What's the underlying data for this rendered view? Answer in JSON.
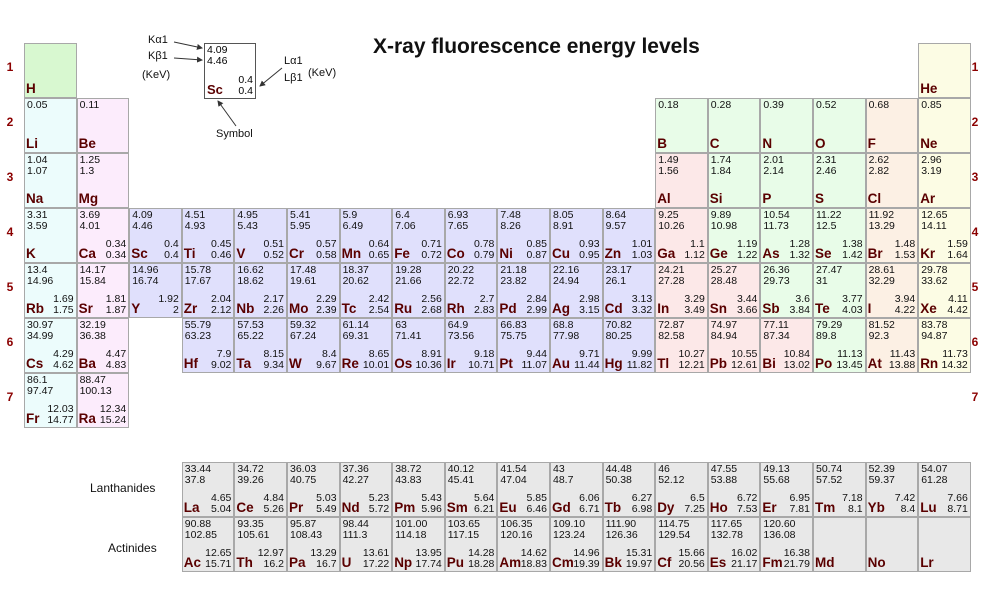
{
  "title": "X-ray fluorescence energy levels",
  "legend": {
    "ka1_label": "Kα1",
    "kb1_label": "Kβ1",
    "k_unit": "(KeV)",
    "la1_label": "Lα1",
    "lb1_label": "Lβ1",
    "l_unit": "(KeV)",
    "symbol_label": "Symbol",
    "example": {
      "k1": "4.09",
      "k2": "4.46",
      "sym": "Sc",
      "l1": "0.4",
      "l2": "0.4"
    }
  },
  "periods": [
    "1",
    "2",
    "3",
    "4",
    "5",
    "6",
    "7"
  ],
  "series_labels": {
    "lanthanides": "Lanthanides",
    "actinides": "Actinides"
  },
  "colors": {
    "s_block": "#ecfcfc",
    "s2_block": "#fcecfc",
    "d_block": "#e0e0fc",
    "post_transition": "#fce8e8",
    "nonmetal": "#e8fce8",
    "halogen": "#fcf0e4",
    "noble": "#fcfce4",
    "f_block": "#e8e8e8",
    "h": "#d8f8d0"
  },
  "elements": [
    {
      "s": "H",
      "r": 1,
      "c": 1,
      "k1": "",
      "k2": "",
      "l1": "",
      "l2": "",
      "cat": "h"
    },
    {
      "s": "He",
      "r": 1,
      "c": 18,
      "k1": "",
      "k2": "",
      "l1": "",
      "l2": "",
      "cat": "noble"
    },
    {
      "s": "Li",
      "r": 2,
      "c": 1,
      "k1": "0.05",
      "k2": "",
      "l1": "",
      "l2": "",
      "cat": "s_block"
    },
    {
      "s": "Be",
      "r": 2,
      "c": 2,
      "k1": "0.11",
      "k2": "",
      "l1": "",
      "l2": "",
      "cat": "s2_block"
    },
    {
      "s": "B",
      "r": 2,
      "c": 13,
      "k1": "0.18",
      "k2": "",
      "l1": "",
      "l2": "",
      "cat": "nonmetal"
    },
    {
      "s": "C",
      "r": 2,
      "c": 14,
      "k1": "0.28",
      "k2": "",
      "l1": "",
      "l2": "",
      "cat": "nonmetal"
    },
    {
      "s": "N",
      "r": 2,
      "c": 15,
      "k1": "0.39",
      "k2": "",
      "l1": "",
      "l2": "",
      "cat": "nonmetal"
    },
    {
      "s": "O",
      "r": 2,
      "c": 16,
      "k1": "0.52",
      "k2": "",
      "l1": "",
      "l2": "",
      "cat": "nonmetal"
    },
    {
      "s": "F",
      "r": 2,
      "c": 17,
      "k1": "0.68",
      "k2": "",
      "l1": "",
      "l2": "",
      "cat": "halogen"
    },
    {
      "s": "Ne",
      "r": 2,
      "c": 18,
      "k1": "0.85",
      "k2": "",
      "l1": "",
      "l2": "",
      "cat": "noble"
    },
    {
      "s": "Na",
      "r": 3,
      "c": 1,
      "k1": "1.04",
      "k2": "1.07",
      "l1": "",
      "l2": "",
      "cat": "s_block"
    },
    {
      "s": "Mg",
      "r": 3,
      "c": 2,
      "k1": "1.25",
      "k2": "1.3",
      "l1": "",
      "l2": "",
      "cat": "s2_block"
    },
    {
      "s": "Al",
      "r": 3,
      "c": 13,
      "k1": "1.49",
      "k2": "1.56",
      "l1": "",
      "l2": "",
      "cat": "post_transition"
    },
    {
      "s": "Si",
      "r": 3,
      "c": 14,
      "k1": "1.74",
      "k2": "1.84",
      "l1": "",
      "l2": "",
      "cat": "nonmetal"
    },
    {
      "s": "P",
      "r": 3,
      "c": 15,
      "k1": "2.01",
      "k2": "2.14",
      "l1": "",
      "l2": "",
      "cat": "nonmetal"
    },
    {
      "s": "S",
      "r": 3,
      "c": 16,
      "k1": "2.31",
      "k2": "2.46",
      "l1": "",
      "l2": "",
      "cat": "nonmetal"
    },
    {
      "s": "Cl",
      "r": 3,
      "c": 17,
      "k1": "2.62",
      "k2": "2.82",
      "l1": "",
      "l2": "",
      "cat": "halogen"
    },
    {
      "s": "Ar",
      "r": 3,
      "c": 18,
      "k1": "2.96",
      "k2": "3.19",
      "l1": "",
      "l2": "",
      "cat": "noble"
    },
    {
      "s": "K",
      "r": 4,
      "c": 1,
      "k1": "3.31",
      "k2": "3.59",
      "l1": "",
      "l2": "",
      "cat": "s_block"
    },
    {
      "s": "Ca",
      "r": 4,
      "c": 2,
      "k1": "3.69",
      "k2": "4.01",
      "l1": "0.34",
      "l2": "0.34",
      "cat": "s2_block"
    },
    {
      "s": "Sc",
      "r": 4,
      "c": 3,
      "k1": "4.09",
      "k2": "4.46",
      "l1": "0.4",
      "l2": "0.4",
      "cat": "d_block"
    },
    {
      "s": "Ti",
      "r": 4,
      "c": 4,
      "k1": "4.51",
      "k2": "4.93",
      "l1": "0.45",
      "l2": "0.46",
      "cat": "d_block"
    },
    {
      "s": "V",
      "r": 4,
      "c": 5,
      "k1": "4.95",
      "k2": "5.43",
      "l1": "0.51",
      "l2": "0.52",
      "cat": "d_block"
    },
    {
      "s": "Cr",
      "r": 4,
      "c": 6,
      "k1": "5.41",
      "k2": "5.95",
      "l1": "0.57",
      "l2": "0.58",
      "cat": "d_block"
    },
    {
      "s": "Mn",
      "r": 4,
      "c": 7,
      "k1": "5.9",
      "k2": "6.49",
      "l1": "0.64",
      "l2": "0.65",
      "cat": "d_block"
    },
    {
      "s": "Fe",
      "r": 4,
      "c": 8,
      "k1": "6.4",
      "k2": "7.06",
      "l1": "0.71",
      "l2": "0.72",
      "cat": "d_block"
    },
    {
      "s": "Co",
      "r": 4,
      "c": 9,
      "k1": "6.93",
      "k2": "7.65",
      "l1": "0.78",
      "l2": "0.79",
      "cat": "d_block"
    },
    {
      "s": "Ni",
      "r": 4,
      "c": 10,
      "k1": "7.48",
      "k2": "8.26",
      "l1": "0.85",
      "l2": "0.87",
      "cat": "d_block"
    },
    {
      "s": "Cu",
      "r": 4,
      "c": 11,
      "k1": "8.05",
      "k2": "8.91",
      "l1": "0.93",
      "l2": "0.95",
      "cat": "d_block"
    },
    {
      "s": "Zn",
      "r": 4,
      "c": 12,
      "k1": "8.64",
      "k2": "9.57",
      "l1": "1.01",
      "l2": "1.03",
      "cat": "d_block"
    },
    {
      "s": "Ga",
      "r": 4,
      "c": 13,
      "k1": "9.25",
      "k2": "10.26",
      "l1": "1.1",
      "l2": "1.12",
      "cat": "post_transition"
    },
    {
      "s": "Ge",
      "r": 4,
      "c": 14,
      "k1": "9.89",
      "k2": "10.98",
      "l1": "1.19",
      "l2": "1.22",
      "cat": "nonmetal"
    },
    {
      "s": "As",
      "r": 4,
      "c": 15,
      "k1": "10.54",
      "k2": "11.73",
      "l1": "1.28",
      "l2": "1.32",
      "cat": "nonmetal"
    },
    {
      "s": "Se",
      "r": 4,
      "c": 16,
      "k1": "11.22",
      "k2": "12.5",
      "l1": "1.38",
      "l2": "1.42",
      "cat": "nonmetal"
    },
    {
      "s": "Br",
      "r": 4,
      "c": 17,
      "k1": "11.92",
      "k2": "13.29",
      "l1": "1.48",
      "l2": "1.53",
      "cat": "halogen"
    },
    {
      "s": "Kr",
      "r": 4,
      "c": 18,
      "k1": "12.65",
      "k2": "14.11",
      "l1": "1.59",
      "l2": "1.64",
      "cat": "noble"
    },
    {
      "s": "Rb",
      "r": 5,
      "c": 1,
      "k1": "13.4",
      "k2": "14.96",
      "l1": "1.69",
      "l2": "1.75",
      "cat": "s_block"
    },
    {
      "s": "Sr",
      "r": 5,
      "c": 2,
      "k1": "14.17",
      "k2": "15.84",
      "l1": "1.81",
      "l2": "1.87",
      "cat": "s2_block"
    },
    {
      "s": "Y",
      "r": 5,
      "c": 3,
      "k1": "14.96",
      "k2": "16.74",
      "l1": "1.92",
      "l2": "2",
      "cat": "d_block"
    },
    {
      "s": "Zr",
      "r": 5,
      "c": 4,
      "k1": "15.78",
      "k2": "17.67",
      "l1": "2.04",
      "l2": "2.12",
      "cat": "d_block"
    },
    {
      "s": "Nb",
      "r": 5,
      "c": 5,
      "k1": "16.62",
      "k2": "18.62",
      "l1": "2.17",
      "l2": "2.26",
      "cat": "d_block"
    },
    {
      "s": "Mo",
      "r": 5,
      "c": 6,
      "k1": "17.48",
      "k2": "19.61",
      "l1": "2.29",
      "l2": "2.39",
      "cat": "d_block"
    },
    {
      "s": "Tc",
      "r": 5,
      "c": 7,
      "k1": "18.37",
      "k2": "20.62",
      "l1": "2.42",
      "l2": "2.54",
      "cat": "d_block"
    },
    {
      "s": "Ru",
      "r": 5,
      "c": 8,
      "k1": "19.28",
      "k2": "21.66",
      "l1": "2.56",
      "l2": "2.68",
      "cat": "d_block"
    },
    {
      "s": "Rh",
      "r": 5,
      "c": 9,
      "k1": "20.22",
      "k2": "22.72",
      "l1": "2.7",
      "l2": "2.83",
      "cat": "d_block"
    },
    {
      "s": "Pd",
      "r": 5,
      "c": 10,
      "k1": "21.18",
      "k2": "23.82",
      "l1": "2.84",
      "l2": "2.99",
      "cat": "d_block"
    },
    {
      "s": "Ag",
      "r": 5,
      "c": 11,
      "k1": "22.16",
      "k2": "24.94",
      "l1": "2.98",
      "l2": "3.15",
      "cat": "d_block"
    },
    {
      "s": "Cd",
      "r": 5,
      "c": 12,
      "k1": "23.17",
      "k2": "26.1",
      "l1": "3.13",
      "l2": "3.32",
      "cat": "d_block"
    },
    {
      "s": "In",
      "r": 5,
      "c": 13,
      "k1": "24.21",
      "k2": "27.28",
      "l1": "3.29",
      "l2": "3.49",
      "cat": "post_transition"
    },
    {
      "s": "Sn",
      "r": 5,
      "c": 14,
      "k1": "25.27",
      "k2": "28.48",
      "l1": "3.44",
      "l2": "3.66",
      "cat": "post_transition"
    },
    {
      "s": "Sb",
      "r": 5,
      "c": 15,
      "k1": "26.36",
      "k2": "29.73",
      "l1": "3.6",
      "l2": "3.84",
      "cat": "nonmetal"
    },
    {
      "s": "Te",
      "r": 5,
      "c": 16,
      "k1": "27.47",
      "k2": "31",
      "l1": "3.77",
      "l2": "4.03",
      "cat": "nonmetal"
    },
    {
      "s": "I",
      "r": 5,
      "c": 17,
      "k1": "28.61",
      "k2": "32.29",
      "l1": "3.94",
      "l2": "4.22",
      "cat": "halogen"
    },
    {
      "s": "Xe",
      "r": 5,
      "c": 18,
      "k1": "29.78",
      "k2": "33.62",
      "l1": "4.11",
      "l2": "4.42",
      "cat": "noble"
    },
    {
      "s": "Cs",
      "r": 6,
      "c": 1,
      "k1": "30.97",
      "k2": "34.99",
      "l1": "4.29",
      "l2": "4.62",
      "cat": "s_block"
    },
    {
      "s": "Ba",
      "r": 6,
      "c": 2,
      "k1": "32.19",
      "k2": "36.38",
      "l1": "4.47",
      "l2": "4.83",
      "cat": "s2_block"
    },
    {
      "s": "Hf",
      "r": 6,
      "c": 4,
      "k1": "55.79",
      "k2": "63.23",
      "l1": "7.9",
      "l2": "9.02",
      "cat": "d_block"
    },
    {
      "s": "Ta",
      "r": 6,
      "c": 5,
      "k1": "57.53",
      "k2": "65.22",
      "l1": "8.15",
      "l2": "9.34",
      "cat": "d_block"
    },
    {
      "s": "W",
      "r": 6,
      "c": 6,
      "k1": "59.32",
      "k2": "67.24",
      "l1": "8.4",
      "l2": "9.67",
      "cat": "d_block"
    },
    {
      "s": "Re",
      "r": 6,
      "c": 7,
      "k1": "61.14",
      "k2": "69.31",
      "l1": "8.65",
      "l2": "10.01",
      "cat": "d_block"
    },
    {
      "s": "Os",
      "r": 6,
      "c": 8,
      "k1": "63",
      "k2": "71.41",
      "l1": "8.91",
      "l2": "10.36",
      "cat": "d_block"
    },
    {
      "s": "Ir",
      "r": 6,
      "c": 9,
      "k1": "64.9",
      "k2": "73.56",
      "l1": "9.18",
      "l2": "10.71",
      "cat": "d_block"
    },
    {
      "s": "Pt",
      "r": 6,
      "c": 10,
      "k1": "66.83",
      "k2": "75.75",
      "l1": "9.44",
      "l2": "11.07",
      "cat": "d_block"
    },
    {
      "s": "Au",
      "r": 6,
      "c": 11,
      "k1": "68.8",
      "k2": "77.98",
      "l1": "9.71",
      "l2": "11.44",
      "cat": "d_block"
    },
    {
      "s": "Hg",
      "r": 6,
      "c": 12,
      "k1": "70.82",
      "k2": "80.25",
      "l1": "9.99",
      "l2": "11.82",
      "cat": "d_block"
    },
    {
      "s": "Tl",
      "r": 6,
      "c": 13,
      "k1": "72.87",
      "k2": "82.58",
      "l1": "10.27",
      "l2": "12.21",
      "cat": "post_transition"
    },
    {
      "s": "Pb",
      "r": 6,
      "c": 14,
      "k1": "74.97",
      "k2": "84.94",
      "l1": "10.55",
      "l2": "12.61",
      "cat": "post_transition"
    },
    {
      "s": "Bi",
      "r": 6,
      "c": 15,
      "k1": "77.11",
      "k2": "87.34",
      "l1": "10.84",
      "l2": "13.02",
      "cat": "post_transition"
    },
    {
      "s": "Po",
      "r": 6,
      "c": 16,
      "k1": "79.29",
      "k2": "89.8",
      "l1": "11.13",
      "l2": "13.45",
      "cat": "nonmetal"
    },
    {
      "s": "At",
      "r": 6,
      "c": 17,
      "k1": "81.52",
      "k2": "92.3",
      "l1": "11.43",
      "l2": "13.88",
      "cat": "halogen"
    },
    {
      "s": "Rn",
      "r": 6,
      "c": 18,
      "k1": "83.78",
      "k2": "94.87",
      "l1": "11.73",
      "l2": "14.32",
      "cat": "noble"
    },
    {
      "s": "Fr",
      "r": 7,
      "c": 1,
      "k1": "86.1",
      "k2": "97.47",
      "l1": "12.03",
      "l2": "14.77",
      "cat": "s_block"
    },
    {
      "s": "Ra",
      "r": 7,
      "c": 2,
      "k1": "88.47",
      "k2": "100.13",
      "l1": "12.34",
      "l2": "15.24",
      "cat": "s2_block"
    },
    {
      "s": "La",
      "r": 9,
      "c": 4,
      "k1": "33.44",
      "k2": "37.8",
      "l1": "4.65",
      "l2": "5.04",
      "cat": "f_block"
    },
    {
      "s": "Ce",
      "r": 9,
      "c": 5,
      "k1": "34.72",
      "k2": "39.26",
      "l1": "4.84",
      "l2": "5.26",
      "cat": "f_block"
    },
    {
      "s": "Pr",
      "r": 9,
      "c": 6,
      "k1": "36.03",
      "k2": "40.75",
      "l1": "5.03",
      "l2": "5.49",
      "cat": "f_block"
    },
    {
      "s": "Nd",
      "r": 9,
      "c": 7,
      "k1": "37.36",
      "k2": "42.27",
      "l1": "5.23",
      "l2": "5.72",
      "cat": "f_block"
    },
    {
      "s": "Pm",
      "r": 9,
      "c": 8,
      "k1": "38.72",
      "k2": "43.83",
      "l1": "5.43",
      "l2": "5.96",
      "cat": "f_block"
    },
    {
      "s": "Sm",
      "r": 9,
      "c": 9,
      "k1": "40.12",
      "k2": "45.41",
      "l1": "5.64",
      "l2": "6.21",
      "cat": "f_block"
    },
    {
      "s": "Eu",
      "r": 9,
      "c": 10,
      "k1": "41.54",
      "k2": "47.04",
      "l1": "5.85",
      "l2": "6.46",
      "cat": "f_block"
    },
    {
      "s": "Gd",
      "r": 9,
      "c": 11,
      "k1": "43",
      "k2": "48.7",
      "l1": "6.06",
      "l2": "6.71",
      "cat": "f_block"
    },
    {
      "s": "Tb",
      "r": 9,
      "c": 12,
      "k1": "44.48",
      "k2": "50.38",
      "l1": "6.27",
      "l2": "6.98",
      "cat": "f_block"
    },
    {
      "s": "Dy",
      "r": 9,
      "c": 13,
      "k1": "46",
      "k2": "52.12",
      "l1": "6.5",
      "l2": "7.25",
      "cat": "f_block"
    },
    {
      "s": "Ho",
      "r": 9,
      "c": 14,
      "k1": "47.55",
      "k2": "53.88",
      "l1": "6.72",
      "l2": "7.53",
      "cat": "f_block"
    },
    {
      "s": "Er",
      "r": 9,
      "c": 15,
      "k1": "49.13",
      "k2": "55.68",
      "l1": "6.95",
      "l2": "7.81",
      "cat": "f_block"
    },
    {
      "s": "Tm",
      "r": 9,
      "c": 16,
      "k1": "50.74",
      "k2": "57.52",
      "l1": "7.18",
      "l2": "8.1",
      "cat": "f_block"
    },
    {
      "s": "Yb",
      "r": 9,
      "c": 17,
      "k1": "52.39",
      "k2": "59.37",
      "l1": "7.42",
      "l2": "8.4",
      "cat": "f_block"
    },
    {
      "s": "Lu",
      "r": 9,
      "c": 18,
      "k1": "54.07",
      "k2": "61.28",
      "l1": "7.66",
      "l2": "8.71",
      "cat": "f_block"
    },
    {
      "s": "Ac",
      "r": 10,
      "c": 4,
      "k1": "90.88",
      "k2": "102.85",
      "l1": "12.65",
      "l2": "15.71",
      "cat": "f_block"
    },
    {
      "s": "Th",
      "r": 10,
      "c": 5,
      "k1": "93.35",
      "k2": "105.61",
      "l1": "12.97",
      "l2": "16.2",
      "cat": "f_block"
    },
    {
      "s": "Pa",
      "r": 10,
      "c": 6,
      "k1": "95.87",
      "k2": "108.43",
      "l1": "13.29",
      "l2": "16.7",
      "cat": "f_block"
    },
    {
      "s": "U",
      "r": 10,
      "c": 7,
      "k1": "98.44",
      "k2": "111.3",
      "l1": "13.61",
      "l2": "17.22",
      "cat": "f_block"
    },
    {
      "s": "Np",
      "r": 10,
      "c": 8,
      "k1": "101.00",
      "k2": "114.18",
      "l1": "13.95",
      "l2": "17.74",
      "cat": "f_block"
    },
    {
      "s": "Pu",
      "r": 10,
      "c": 9,
      "k1": "103.65",
      "k2": "117.15",
      "l1": "14.28",
      "l2": "18.28",
      "cat": "f_block"
    },
    {
      "s": "Am",
      "r": 10,
      "c": 10,
      "k1": "106.35",
      "k2": "120.16",
      "l1": "14.62",
      "l2": "18.83",
      "cat": "f_block"
    },
    {
      "s": "Cm",
      "r": 10,
      "c": 11,
      "k1": "109.10",
      "k2": "123.24",
      "l1": "14.96",
      "l2": "19.39",
      "cat": "f_block"
    },
    {
      "s": "Bk",
      "r": 10,
      "c": 12,
      "k1": "111.90",
      "k2": "126.36",
      "l1": "15.31",
      "l2": "19.97",
      "cat": "f_block"
    },
    {
      "s": "Cf",
      "r": 10,
      "c": 13,
      "k1": "114.75",
      "k2": "129.54",
      "l1": "15.66",
      "l2": "20.56",
      "cat": "f_block"
    },
    {
      "s": "Es",
      "r": 10,
      "c": 14,
      "k1": "117.65",
      "k2": "132.78",
      "l1": "16.02",
      "l2": "21.17",
      "cat": "f_block"
    },
    {
      "s": "Fm",
      "r": 10,
      "c": 15,
      "k1": "120.60",
      "k2": "136.08",
      "l1": "16.38",
      "l2": "21.79",
      "cat": "f_block"
    },
    {
      "s": "Md",
      "r": 10,
      "c": 16,
      "k1": "",
      "k2": "",
      "l1": "",
      "l2": "",
      "cat": "f_block"
    },
    {
      "s": "No",
      "r": 10,
      "c": 17,
      "k1": "",
      "k2": "",
      "l1": "",
      "l2": "",
      "cat": "f_block"
    },
    {
      "s": "Lr",
      "r": 10,
      "c": 18,
      "k1": "",
      "k2": "",
      "l1": "",
      "l2": "",
      "cat": "f_block"
    }
  ]
}
